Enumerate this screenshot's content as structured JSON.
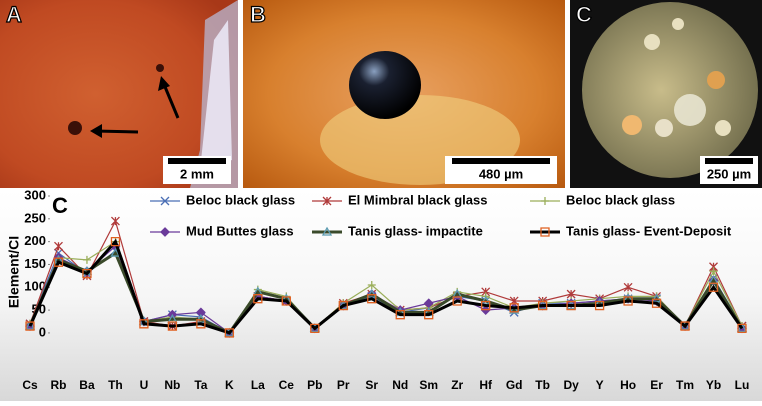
{
  "panels": [
    {
      "label": "A",
      "scale": "2 mm"
    },
    {
      "label": "B",
      "scale": "480 µm"
    },
    {
      "label": "C",
      "scale": "250 µm"
    }
  ],
  "chart_data": {
    "type": "line",
    "label": "C",
    "y_label": "Element/CI",
    "categories": [
      "Cs",
      "Rb",
      "Ba",
      "Th",
      "U",
      "Nb",
      "Ta",
      "K",
      "La",
      "Ce",
      "Pb",
      "Pr",
      "Sr",
      "Nd",
      "Sm",
      "Zr",
      "Hf",
      "Gd",
      "Tb",
      "Dy",
      "Y",
      "Ho",
      "Er",
      "Tm",
      "Yb",
      "Lu"
    ],
    "ylim": [
      -90,
      300
    ],
    "yticks": [
      0,
      50,
      100,
      150,
      200,
      250,
      300
    ],
    "series": [
      {
        "name": "Beloc black glass",
        "color": "#4a6fb5",
        "marker": "x",
        "values": [
          20,
          175,
          130,
          180,
          25,
          40,
          35,
          0,
          80,
          70,
          10,
          60,
          80,
          45,
          55,
          80,
          70,
          45,
          65,
          65,
          70,
          75,
          75,
          15,
          120,
          15
        ]
      },
      {
        "name": "El Mimbral black glass",
        "color": "#b03a3a",
        "marker": "star",
        "values": [
          20,
          190,
          125,
          245,
          25,
          15,
          25,
          0,
          80,
          70,
          10,
          65,
          85,
          50,
          55,
          80,
          90,
          70,
          70,
          85,
          75,
          100,
          80,
          15,
          145,
          15
        ]
      },
      {
        "name": "Beloc black glass",
        "color": "#9aae5a",
        "marker": "plus",
        "values": [
          20,
          165,
          160,
          200,
          25,
          35,
          30,
          0,
          95,
          80,
          10,
          65,
          105,
          50,
          55,
          90,
          80,
          55,
          65,
          70,
          75,
          80,
          80,
          15,
          135,
          15
        ]
      },
      {
        "name": "Mud Buttes glass",
        "color": "#6a3a9a",
        "marker": "diamond",
        "values": [
          15,
          165,
          135,
          190,
          25,
          40,
          45,
          0,
          80,
          70,
          10,
          60,
          85,
          50,
          65,
          80,
          50,
          55,
          60,
          65,
          70,
          75,
          70,
          15,
          115,
          10
        ]
      },
      {
        "name": "Tanis glass-  impactite",
        "color": "#3a4a2a",
        "marker": "triangle",
        "values": [
          15,
          160,
          135,
          175,
          25,
          30,
          30,
          0,
          90,
          75,
          10,
          60,
          85,
          45,
          45,
          85,
          70,
          50,
          60,
          60,
          65,
          75,
          75,
          15,
          115,
          10
        ]
      },
      {
        "name": "Tanis glass-   Event-Deposit",
        "color": "#000000",
        "marker": "square",
        "values": [
          15,
          155,
          130,
          200,
          20,
          15,
          20,
          0,
          75,
          70,
          10,
          60,
          75,
          40,
          40,
          70,
          60,
          55,
          60,
          60,
          60,
          70,
          65,
          15,
          100,
          10
        ]
      }
    ]
  }
}
